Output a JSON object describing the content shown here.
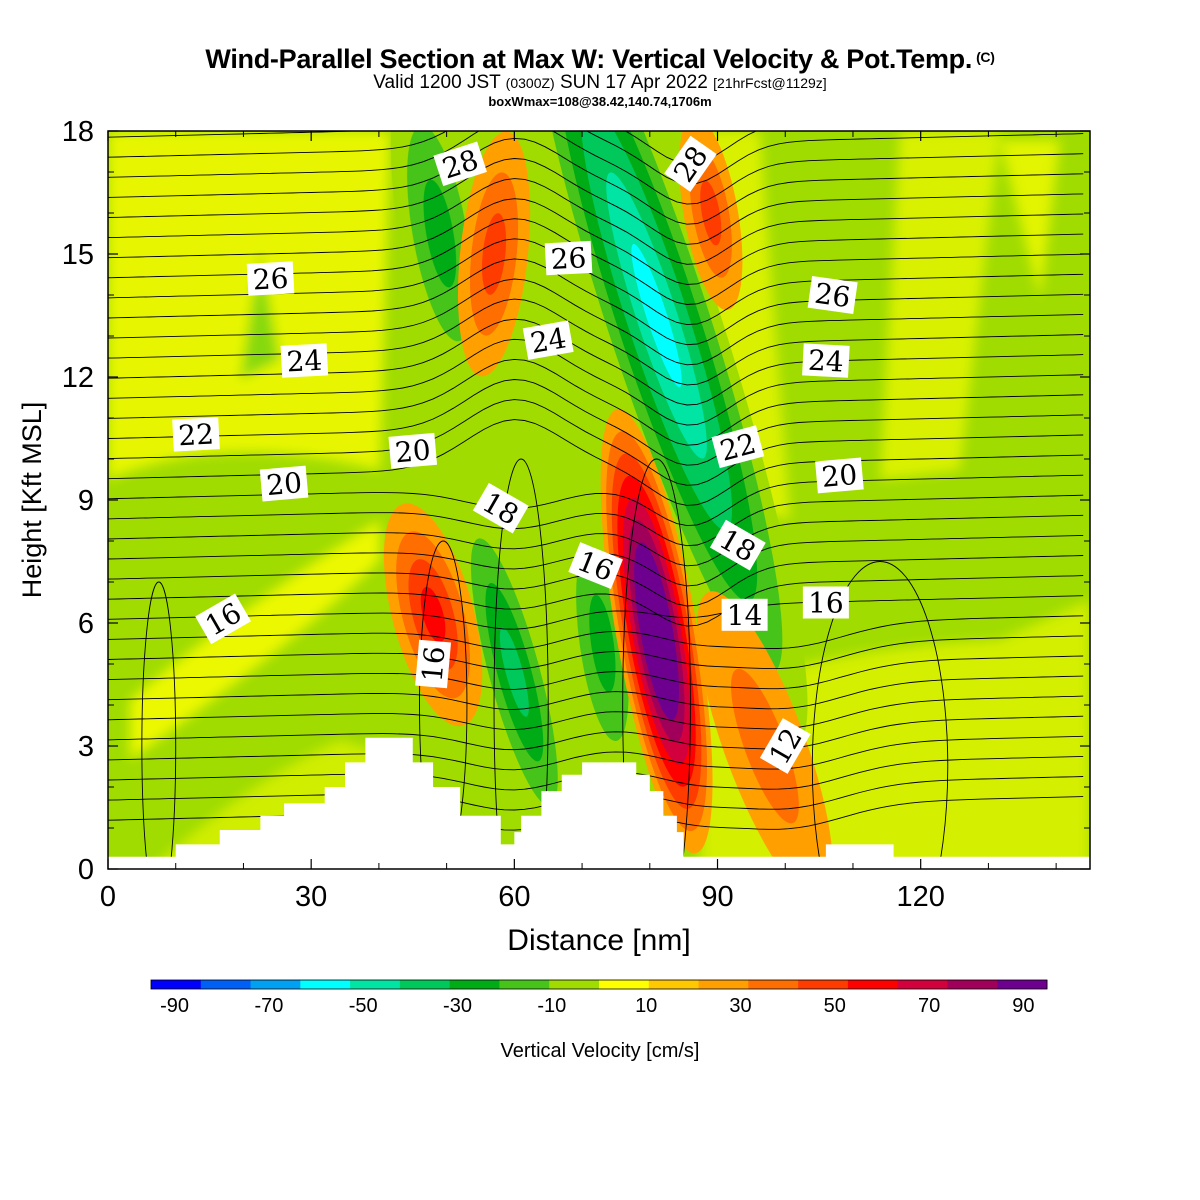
{
  "title": "Wind-Parallel Section at Max W: Vertical Velocity & Pot.Temp.",
  "title_mark": "(C)",
  "subtitle_main": "Valid 1200 JST",
  "subtitle_utc": "(0300Z)",
  "subtitle_date": "SUN 17 Apr 2022",
  "subtitle_fcst": "[21hrFcst@1129z]",
  "subtitle2": "boxWmax=108@38.42,140.74,1706m",
  "chart_data": {
    "type": "heatmap",
    "xlabel": "Distance [nm]",
    "ylabel": "Height [Kft MSL]",
    "xlim": [
      0,
      145
    ],
    "ylim": [
      0,
      18
    ],
    "xticks": [
      0,
      30,
      60,
      90,
      120
    ],
    "yticks": [
      0,
      3,
      6,
      9,
      12,
      15,
      18
    ],
    "colorbar": {
      "label": "Vertical Velocity [cm/s]",
      "levels": [
        -100,
        -90,
        -80,
        -70,
        -60,
        -50,
        -40,
        -30,
        -20,
        -10,
        0,
        10,
        20,
        30,
        40,
        50,
        60,
        70,
        80,
        90,
        100
      ],
      "tick_labels": [
        "-90",
        "-70",
        "-50",
        "-30",
        "-10",
        "10",
        "30",
        "50",
        "70",
        "90"
      ],
      "colors": [
        "#0000ff",
        "#005ff7",
        "#00a1f3",
        "#00ffff",
        "#00e4a4",
        "#00c85b",
        "#00ac15",
        "#46c41a",
        "#a0dc00",
        "#ffff00",
        "#ffc800",
        "#ffa000",
        "#ff6e00",
        "#ff3c00",
        "#ff0000",
        "#d2003c",
        "#a0005a",
        "#6e0090"
      ]
    },
    "vertical_velocity_features": [
      {
        "type": "downdraft",
        "x": 49,
        "y": 15.5,
        "value": -30
      },
      {
        "type": "downdraft",
        "x": 60,
        "y": 4.8,
        "value": -40
      },
      {
        "type": "downdraft",
        "x": 73,
        "y": 5.5,
        "value": -30
      },
      {
        "type": "downdraft",
        "x": 81,
        "y": 13.5,
        "value": -60
      },
      {
        "type": "updraft",
        "x": 48,
        "y": 6.2,
        "value": 40
      },
      {
        "type": "updraft",
        "x": 57,
        "y": 15,
        "value": 25
      },
      {
        "type": "updraft",
        "x": 81,
        "y": 5.8,
        "value": 100
      },
      {
        "type": "updraft",
        "x": 89,
        "y": 16,
        "value": 25
      },
      {
        "type": "updraft",
        "x": 97,
        "y": 3,
        "value": 20
      }
    ],
    "theta_contour_labels": [
      {
        "text": "28",
        "x": 52,
        "y": 17.2,
        "angle": -18
      },
      {
        "text": "28",
        "x": 86,
        "y": 17.2,
        "angle": -55
      },
      {
        "text": "26",
        "x": 24,
        "y": 14.4,
        "angle": -3
      },
      {
        "text": "26",
        "x": 68,
        "y": 14.9,
        "angle": -3
      },
      {
        "text": "26",
        "x": 107,
        "y": 14.0,
        "angle": 8
      },
      {
        "text": "24",
        "x": 29,
        "y": 12.4,
        "angle": -3
      },
      {
        "text": "24",
        "x": 65,
        "y": 12.9,
        "angle": -10
      },
      {
        "text": "24",
        "x": 106,
        "y": 12.4,
        "angle": 3
      },
      {
        "text": "22",
        "x": 13,
        "y": 10.6,
        "angle": -3
      },
      {
        "text": "22",
        "x": 93,
        "y": 10.3,
        "angle": -15
      },
      {
        "text": "20",
        "x": 26,
        "y": 9.4,
        "angle": -5
      },
      {
        "text": "20",
        "x": 45,
        "y": 10.2,
        "angle": -5
      },
      {
        "text": "20",
        "x": 108,
        "y": 9.6,
        "angle": -5
      },
      {
        "text": "18",
        "x": 58,
        "y": 8.8,
        "angle": 30
      },
      {
        "text": "18",
        "x": 93,
        "y": 7.9,
        "angle": 30
      },
      {
        "text": "16",
        "x": 17,
        "y": 6.1,
        "angle": -30
      },
      {
        "text": "16",
        "x": 72,
        "y": 7.4,
        "angle": 22
      },
      {
        "text": "16",
        "x": 48,
        "y": 5.0,
        "angle": -85
      },
      {
        "text": "16",
        "x": 106,
        "y": 6.5,
        "angle": 0
      },
      {
        "text": "14",
        "x": 94,
        "y": 6.2,
        "angle": 0
      },
      {
        "text": "12",
        "x": 100,
        "y": 3.0,
        "angle": -60
      }
    ],
    "terrain_steps": [
      [
        0,
        0.3
      ],
      [
        10,
        0.6
      ],
      [
        16.5,
        0.95
      ],
      [
        22.5,
        1.3
      ],
      [
        26,
        1.6
      ],
      [
        32,
        2.0
      ],
      [
        35,
        2.6
      ],
      [
        36,
        2.6
      ],
      [
        38,
        3.2
      ],
      [
        45,
        2.6
      ],
      [
        48,
        2.0
      ],
      [
        52,
        1.3
      ],
      [
        54.5,
        1.3
      ],
      [
        58,
        0.6
      ],
      [
        60,
        0.9
      ],
      [
        61,
        1.3
      ],
      [
        64,
        1.9
      ],
      [
        67,
        2.3
      ],
      [
        70,
        2.6
      ],
      [
        75,
        2.6
      ],
      [
        78,
        2.3
      ],
      [
        80,
        1.9
      ],
      [
        82,
        1.3
      ],
      [
        84,
        0.9
      ],
      [
        85,
        0.3
      ],
      [
        106,
        0.3
      ],
      [
        106,
        0.6
      ],
      [
        116,
        0.6
      ],
      [
        116,
        0.3
      ],
      [
        145,
        0.3
      ]
    ]
  }
}
